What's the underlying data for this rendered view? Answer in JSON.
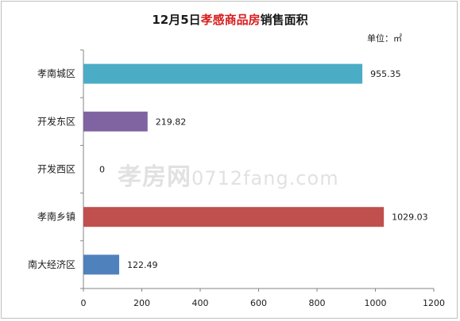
{
  "title": {
    "prefix": "12月5日",
    "highlight": "孝感商品房",
    "suffix": "销售面积"
  },
  "unit_label": "单位：㎡",
  "watermark": {
    "logo": "孝房网",
    "url": "0712fang.com"
  },
  "chart_data": {
    "type": "bar",
    "orientation": "horizontal",
    "categories": [
      "孝南城区",
      "开发东区",
      "开发西区",
      "孝南乡镇",
      "南大经济区"
    ],
    "values": [
      955.35,
      219.82,
      0,
      1029.03,
      122.49
    ],
    "value_labels": [
      "955.35",
      "219.82",
      "0",
      "1029.03",
      "122.49"
    ],
    "colors": [
      "#4bacc6",
      "#8064a2",
      "#9bbb59",
      "#c0504d",
      "#4f81bd"
    ],
    "xlim": [
      0,
      1200
    ],
    "xticks": [
      0,
      200,
      400,
      600,
      800,
      1000,
      1200
    ],
    "grid": false,
    "legend": "none"
  }
}
